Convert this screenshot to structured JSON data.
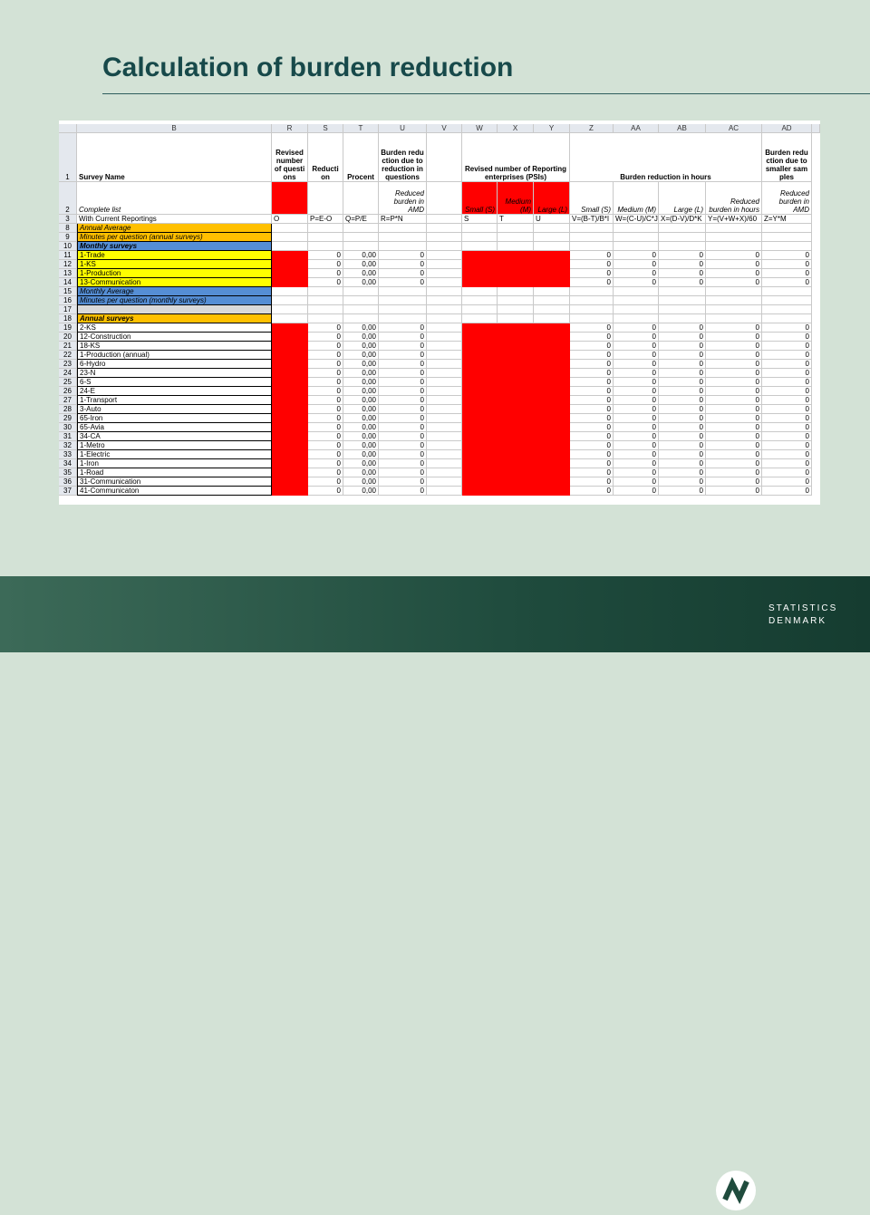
{
  "title": "Calculation of burden reduction",
  "logo": {
    "line1": "STATISTICS",
    "line2": "DENMARK"
  },
  "sheet": {
    "columns": [
      "B",
      "R",
      "S",
      "T",
      "U",
      "V",
      "W",
      "X",
      "Y",
      "Z",
      "AA",
      "AB",
      "AC",
      "AD"
    ],
    "header_rows": [
      {
        "num": "1",
        "cells": {
          "B": "Survey Name",
          "R": "Revised number of questions",
          "S": "Reduction",
          "T": "Procent",
          "U": "Burden reduction due to reduction in questions",
          "W": "Revised number of Reporting enterprises (PSIs)",
          "Z": "Burden reduction in hours",
          "AD": "Burden reduction due to smaller samples"
        }
      },
      {
        "num": "2",
        "cells": {
          "B": "Complete list",
          "U": "Reduced burden in AMD",
          "W": "Small (S)",
          "X": "Medium (M)",
          "Y": "Large (L)",
          "Z": "Small (S)",
          "AA": "Medium (M)",
          "AB": "Large (L)",
          "AC": "Reduced burden in hours",
          "AD": "Reduced burden in AMD"
        }
      },
      {
        "num": "3",
        "cells": {
          "B": "With Current Reportings",
          "R": "O",
          "S": "P=E-O",
          "T": "Q=P/E",
          "U": "R=P*N",
          "W": "S",
          "X": "T",
          "Y": "U",
          "Z": "V=(B-T)/B*I",
          "AA": "W=(C-U)/C*J",
          "AB": "X=(D-V)/D*K",
          "AC": "Y=(V+W+X)/60",
          "AD": "Z=Y*M"
        }
      }
    ],
    "rows": [
      {
        "num": "8",
        "name": "Annual Average"
      },
      {
        "num": "9",
        "name": "Minutes per question (annual surveys)"
      },
      {
        "num": "10",
        "name": "Monthly surveys"
      },
      {
        "num": "11",
        "name": "1-Trade",
        "cells": {
          "S": 0,
          "T": "0,00",
          "U": 0,
          "Z": 0,
          "AA": 0,
          "AB": 0,
          "AC": 0,
          "AD": 0
        }
      },
      {
        "num": "12",
        "name": "1-KS",
        "cells": {
          "S": 0,
          "T": "0,00",
          "U": 0,
          "Z": 0,
          "AA": 0,
          "AB": 0,
          "AC": 0,
          "AD": 0
        }
      },
      {
        "num": "13",
        "name": "1-Production",
        "cells": {
          "S": 0,
          "T": "0,00",
          "U": 0,
          "Z": 0,
          "AA": 0,
          "AB": 0,
          "AC": 0,
          "AD": 0
        }
      },
      {
        "num": "14",
        "name": "13-Communication",
        "cells": {
          "S": 0,
          "T": "0,00",
          "U": 0,
          "Z": 0,
          "AA": 0,
          "AB": 0,
          "AC": 0,
          "AD": 0
        }
      },
      {
        "num": "15",
        "name": "Monthly Average"
      },
      {
        "num": "16",
        "name": "Minutes per question (monthly surveys)"
      },
      {
        "num": "17"
      },
      {
        "num": "18",
        "name": "Annual surveys"
      },
      {
        "num": "19",
        "name": "2-KS",
        "cells": {
          "S": 0,
          "T": "0,00",
          "U": 0,
          "Z": 0,
          "AA": 0,
          "AB": 0,
          "AC": 0,
          "AD": 0
        }
      },
      {
        "num": "20",
        "name": "12-Construction",
        "cells": {
          "S": 0,
          "T": "0,00",
          "U": 0,
          "Z": 0,
          "AA": 0,
          "AB": 0,
          "AC": 0,
          "AD": 0
        }
      },
      {
        "num": "21",
        "name": "18-KS",
        "cells": {
          "S": 0,
          "T": "0,00",
          "U": 0,
          "Z": 0,
          "AA": 0,
          "AB": 0,
          "AC": 0,
          "AD": 0
        }
      },
      {
        "num": "22",
        "name": "1-Production (annual)",
        "cells": {
          "S": 0,
          "T": "0,00",
          "U": 0,
          "Z": 0,
          "AA": 0,
          "AB": 0,
          "AC": 0,
          "AD": 0
        }
      },
      {
        "num": "23",
        "name": "6-Hydro",
        "cells": {
          "S": 0,
          "T": "0,00",
          "U": 0,
          "Z": 0,
          "AA": 0,
          "AB": 0,
          "AC": 0,
          "AD": 0
        }
      },
      {
        "num": "24",
        "name": "23-N",
        "cells": {
          "S": 0,
          "T": "0,00",
          "U": 0,
          "Z": 0,
          "AA": 0,
          "AB": 0,
          "AC": 0,
          "AD": 0
        }
      },
      {
        "num": "25",
        "name": "6-S",
        "cells": {
          "S": 0,
          "T": "0,00",
          "U": 0,
          "Z": 0,
          "AA": 0,
          "AB": 0,
          "AC": 0,
          "AD": 0
        }
      },
      {
        "num": "26",
        "name": "24-E",
        "cells": {
          "S": 0,
          "T": "0,00",
          "U": 0,
          "Z": 0,
          "AA": 0,
          "AB": 0,
          "AC": 0,
          "AD": 0
        }
      },
      {
        "num": "27",
        "name": "1-Transport",
        "cells": {
          "S": 0,
          "T": "0,00",
          "U": 0,
          "Z": 0,
          "AA": 0,
          "AB": 0,
          "AC": 0,
          "AD": 0
        }
      },
      {
        "num": "28",
        "name": "3-Auto",
        "cells": {
          "S": 0,
          "T": "0,00",
          "U": 0,
          "Z": 0,
          "AA": 0,
          "AB": 0,
          "AC": 0,
          "AD": 0
        }
      },
      {
        "num": "29",
        "name": "65-Iron",
        "cells": {
          "S": 0,
          "T": "0,00",
          "U": 0,
          "Z": 0,
          "AA": 0,
          "AB": 0,
          "AC": 0,
          "AD": 0
        }
      },
      {
        "num": "30",
        "name": "65-Avia",
        "cells": {
          "S": 0,
          "T": "0,00",
          "U": 0,
          "Z": 0,
          "AA": 0,
          "AB": 0,
          "AC": 0,
          "AD": 0
        }
      },
      {
        "num": "31",
        "name": "34-CA",
        "cells": {
          "S": 0,
          "T": "0,00",
          "U": 0,
          "Z": 0,
          "AA": 0,
          "AB": 0,
          "AC": 0,
          "AD": 0
        }
      },
      {
        "num": "32",
        "name": "1-Metro",
        "cells": {
          "S": 0,
          "T": "0,00",
          "U": 0,
          "Z": 0,
          "AA": 0,
          "AB": 0,
          "AC": 0,
          "AD": 0
        }
      },
      {
        "num": "33",
        "name": "1-Electric",
        "cells": {
          "S": 0,
          "T": "0,00",
          "U": 0,
          "Z": 0,
          "AA": 0,
          "AB": 0,
          "AC": 0,
          "AD": 0
        }
      },
      {
        "num": "34",
        "name": "1-Iron",
        "cells": {
          "S": 0,
          "T": "0,00",
          "U": 0,
          "Z": 0,
          "AA": 0,
          "AB": 0,
          "AC": 0,
          "AD": 0
        }
      },
      {
        "num": "35",
        "name": "1-Road",
        "cells": {
          "S": 0,
          "T": "0,00",
          "U": 0,
          "Z": 0,
          "AA": 0,
          "AB": 0,
          "AC": 0,
          "AD": 0
        }
      },
      {
        "num": "36",
        "name": "31-Communication",
        "cells": {
          "S": 0,
          "T": "0,00",
          "U": 0,
          "Z": 0,
          "AA": 0,
          "AB": 0,
          "AC": 0,
          "AD": 0
        }
      },
      {
        "num": "37",
        "name": "41-Communicaton",
        "cells": {
          "S": 0,
          "T": "0,00",
          "U": 0,
          "Z": 0,
          "AA": 0,
          "AB": 0,
          "AC": 0,
          "AD": 0
        }
      }
    ]
  }
}
